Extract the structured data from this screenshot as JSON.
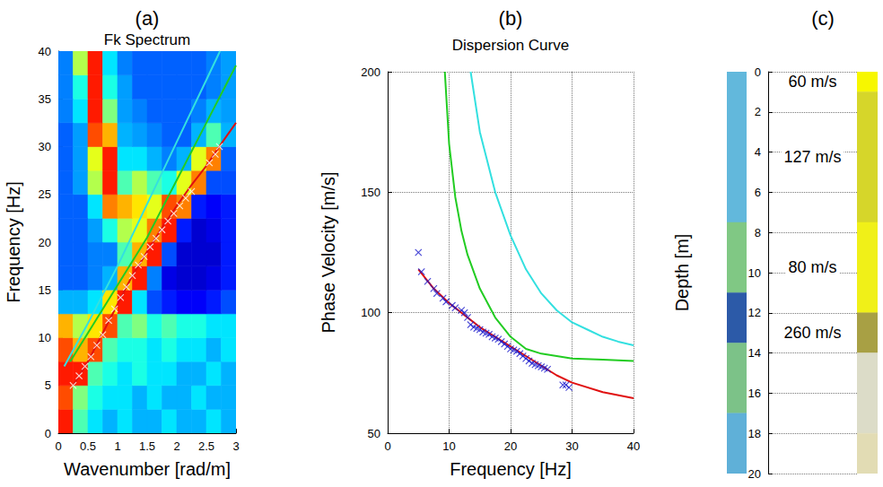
{
  "chart_data": [
    {
      "type": "heatmap",
      "panel_label": "(a)",
      "title": "Fk Spectrum",
      "x_label": "Wavenumber [rad/m]",
      "y_label": "Frequency [Hz]",
      "xlim": [
        0,
        3
      ],
      "ylim": [
        0,
        40
      ],
      "xticks": [
        0,
        0.5,
        1,
        1.5,
        2,
        2.5,
        3
      ],
      "yticks": [
        0,
        5,
        10,
        15,
        20,
        25,
        30,
        35,
        40
      ],
      "grid": false,
      "fk_spectrum": {
        "wavenumber_edges": [
          0,
          0.25,
          0.5,
          0.75,
          1,
          1.25,
          1.5,
          1.75,
          2,
          2.25,
          2.5,
          2.75,
          3
        ],
        "frequency_edges": [
          0,
          2.5,
          5,
          7.5,
          10,
          12.5,
          15,
          17.5,
          20,
          22.5,
          25,
          27.5,
          30,
          32.5,
          35,
          37.5,
          40
        ],
        "color_range": [
          0,
          1
        ],
        "cells": [
          [
            0.85,
            0.45,
            0.35,
            0.3,
            0.35,
            0.3,
            0.3,
            0.35,
            0.3,
            0.3,
            0.35,
            0.3
          ],
          [
            0.8,
            0.5,
            0.4,
            0.35,
            0.35,
            0.3,
            0.35,
            0.3,
            0.3,
            0.35,
            0.3,
            0.3
          ],
          [
            0.85,
            0.85,
            0.45,
            0.4,
            0.35,
            0.4,
            0.35,
            0.35,
            0.3,
            0.3,
            0.35,
            0.3
          ],
          [
            0.8,
            0.7,
            0.8,
            0.45,
            0.4,
            0.4,
            0.35,
            0.4,
            0.35,
            0.35,
            0.3,
            0.35
          ],
          [
            0.7,
            0.55,
            0.65,
            0.8,
            0.45,
            0.5,
            0.4,
            0.45,
            0.4,
            0.4,
            0.35,
            0.35
          ],
          [
            0.3,
            0.3,
            0.35,
            0.65,
            0.85,
            0.35,
            0.2,
            0.15,
            0.12,
            0.12,
            0.15,
            0.2
          ],
          [
            0.22,
            0.22,
            0.25,
            0.3,
            0.7,
            0.85,
            0.25,
            0.1,
            0.08,
            0.08,
            0.1,
            0.15
          ],
          [
            0.22,
            0.22,
            0.25,
            0.25,
            0.45,
            0.7,
            0.85,
            0.2,
            0.08,
            0.08,
            0.08,
            0.15
          ],
          [
            0.22,
            0.22,
            0.28,
            0.4,
            0.55,
            0.6,
            0.75,
            0.85,
            0.15,
            0.08,
            0.1,
            0.15
          ],
          [
            0.22,
            0.22,
            0.35,
            0.75,
            0.7,
            0.65,
            0.6,
            0.8,
            0.75,
            0.15,
            0.12,
            0.15
          ],
          [
            0.22,
            0.28,
            0.55,
            0.85,
            0.45,
            0.55,
            0.45,
            0.4,
            0.6,
            0.75,
            0.2,
            0.2
          ],
          [
            0.22,
            0.28,
            0.6,
            0.85,
            0.35,
            0.35,
            0.3,
            0.25,
            0.3,
            0.6,
            0.75,
            0.22
          ],
          [
            0.22,
            0.28,
            0.8,
            0.7,
            0.3,
            0.28,
            0.25,
            0.22,
            0.22,
            0.3,
            0.45,
            0.3
          ],
          [
            0.25,
            0.35,
            0.85,
            0.5,
            0.28,
            0.25,
            0.22,
            0.22,
            0.22,
            0.25,
            0.3,
            0.28
          ],
          [
            0.25,
            0.4,
            0.85,
            0.4,
            0.28,
            0.22,
            0.22,
            0.22,
            0.22,
            0.22,
            0.25,
            0.28
          ],
          [
            0.25,
            0.55,
            0.85,
            0.35,
            0.25,
            0.22,
            0.22,
            0.22,
            0.22,
            0.22,
            0.25,
            0.28
          ]
        ]
      },
      "series": [
        {
          "type": "line",
          "color": "#33e0e0",
          "x": [
            0.1,
            0.5,
            1,
            1.5,
            2,
            2.5,
            2.73
          ],
          "values": [
            7,
            11.5,
            17.5,
            24,
            30.5,
            37,
            40
          ]
        },
        {
          "type": "line",
          "color": "#22cc22",
          "x": [
            0.2,
            0.5,
            1,
            1.5,
            2,
            2.5,
            3
          ],
          "values": [
            7.5,
            10.5,
            15.5,
            20.5,
            26.5,
            32.5,
            38.5
          ]
        },
        {
          "type": "line",
          "color": "#e01010",
          "x": [
            0.25,
            0.5,
            0.75,
            1,
            1.25,
            1.5,
            1.75,
            2,
            2.25,
            2.5,
            2.75,
            3
          ],
          "values": [
            5,
            7.5,
            10.5,
            13.5,
            16.5,
            19,
            21.5,
            23.8,
            26,
            28,
            30.3,
            32.5
          ]
        },
        {
          "type": "scatter",
          "marker": "x",
          "color": "#ffffff",
          "x": [
            0.25,
            0.35,
            0.45,
            0.55,
            0.65,
            0.75,
            0.85,
            0.95,
            1.05,
            1.15,
            1.25,
            1.35,
            1.45,
            1.55,
            1.65,
            1.75,
            1.85,
            1.95,
            2.05,
            2.15,
            2.25,
            2.55,
            2.65,
            2.72
          ],
          "values": [
            5,
            6,
            7,
            8,
            9.2,
            10.3,
            11.8,
            13,
            14.2,
            15.3,
            16.5,
            17.6,
            18.5,
            19.5,
            20.4,
            21.3,
            22.2,
            23,
            23.8,
            24.6,
            25.3,
            28.3,
            29.2,
            30
          ]
        }
      ]
    },
    {
      "type": "line",
      "panel_label": "(b)",
      "title": "Dispersion Curve",
      "x_label": "Frequency [Hz]",
      "y_label": "Phase Velocity [m/s]",
      "xlim": [
        0,
        40
      ],
      "ylim": [
        50,
        200
      ],
      "xticks": [
        0,
        10,
        20,
        30,
        40
      ],
      "yticks": [
        50,
        100,
        150,
        200
      ],
      "grid": true,
      "series": [
        {
          "type": "line",
          "color": "#33e0e0",
          "x": [
            13.5,
            15,
            17.5,
            20,
            22.5,
            25,
            27.5,
            30,
            32.5,
            35,
            37.5,
            40
          ],
          "values": [
            200,
            175,
            150,
            132,
            118,
            108,
            101,
            96,
            93,
            90,
            88,
            86.5
          ]
        },
        {
          "type": "line",
          "color": "#22cc22",
          "x": [
            9.3,
            10,
            11,
            12,
            13,
            15,
            17.5,
            20,
            22.5,
            25,
            30,
            35,
            40
          ],
          "values": [
            200,
            170,
            148,
            134,
            124,
            110,
            98,
            90,
            85,
            83,
            81,
            80.5,
            80
          ]
        },
        {
          "type": "line",
          "color": "#e01010",
          "x": [
            5,
            7.5,
            10,
            12.5,
            15,
            17.5,
            20,
            22.5,
            25,
            27.5,
            30,
            35,
            40
          ],
          "values": [
            118,
            110,
            104,
            99,
            94,
            90,
            86,
            82,
            78,
            74,
            71,
            67,
            64.5
          ]
        },
        {
          "type": "scatter",
          "marker": "x",
          "color": "#1a1acc",
          "x": [
            5,
            5.5,
            6.5,
            7.5,
            8,
            9,
            9.5,
            10.5,
            11,
            12,
            12.5,
            13,
            13.5,
            14,
            14.5,
            15,
            15.5,
            16,
            16.5,
            17,
            17.5,
            18,
            18.5,
            19,
            19.5,
            20,
            20.5,
            21,
            21.5,
            22,
            22.5,
            23,
            23.5,
            24,
            24.5,
            25,
            25.5,
            26,
            28.5,
            29,
            29.5
          ],
          "values": [
            125,
            117,
            113,
            110,
            108,
            106,
            104.5,
            103,
            102,
            101,
            100,
            98,
            95,
            94,
            93.5,
            93,
            92,
            91.5,
            91,
            90,
            89.5,
            89,
            88,
            87,
            86,
            85,
            84.5,
            84,
            83,
            82,
            81,
            80,
            79,
            78.5,
            78,
            77.5,
            77,
            76.5,
            70,
            70,
            69
          ]
        }
      ]
    },
    {
      "type": "column",
      "panel_label": "(c)",
      "y_label": "Depth [m]",
      "ylim": [
        0,
        20
      ],
      "yticks": [
        0,
        2,
        4,
        6,
        8,
        10,
        12,
        14,
        16,
        18,
        20
      ],
      "grid": true,
      "columns": [
        {
          "layers": [
            {
              "top": 0,
              "bottom": 7.5,
              "color": "#62b8dc"
            },
            {
              "top": 7.5,
              "bottom": 11,
              "color": "#80c884"
            },
            {
              "top": 11,
              "bottom": 13.5,
              "color": "#2c5aa8"
            },
            {
              "top": 13.5,
              "bottom": 17,
              "color": "#7cc288"
            },
            {
              "top": 17,
              "bottom": 20,
              "color": "#5fb0d8"
            }
          ]
        },
        {
          "layers": [
            {
              "top": 0,
              "bottom": 1,
              "color": "#f7f700",
              "label": "60 m/s"
            },
            {
              "top": 1,
              "bottom": 7.5,
              "color": "#d6d62a",
              "label": "127 m/s"
            },
            {
              "top": 7.5,
              "bottom": 12,
              "color": "#f0f018",
              "label": "80 m/s"
            },
            {
              "top": 12,
              "bottom": 14,
              "color": "#a8a044",
              "label": "260 m/s"
            },
            {
              "top": 14,
              "bottom": 18,
              "color": "#dcdcc8"
            },
            {
              "top": 18,
              "bottom": 20,
              "color": "#e2dcb4"
            }
          ]
        }
      ]
    }
  ]
}
